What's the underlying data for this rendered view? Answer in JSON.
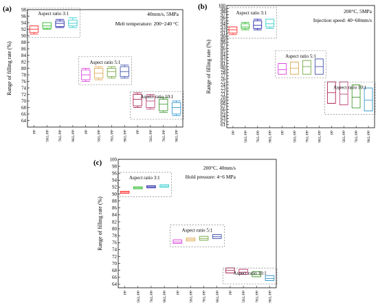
{
  "chart_data": [
    {
      "type": "box",
      "panel_label": "(a)",
      "conditions": [
        "40mm/s, 5MPa",
        "Melt temperature: 200~240 °C"
      ],
      "ylabel": "Range of filling rate (%)",
      "ylim": [
        62,
        98
      ],
      "yticks": [
        64,
        66,
        68,
        70,
        72,
        74,
        76,
        78,
        80,
        82,
        84,
        86,
        88,
        90,
        92,
        94,
        96,
        98
      ],
      "categories": [
        "PP",
        "5KL/PP",
        "7KL/PP",
        "9KL/PP"
      ],
      "groups": [
        {
          "label": "Aspect ratio 3:1",
          "boxes": [
            {
              "category": "PP",
              "min": 90.5,
              "q1": 91.0,
              "median": 92.0,
              "q3": 93.0,
              "max": 93.0
            },
            {
              "category": "5KL/PP",
              "min": 92.0,
              "q1": 92.3,
              "median": 93.0,
              "q3": 94.0,
              "max": 94.0
            },
            {
              "category": "7KL/PP",
              "min": 92.5,
              "q1": 92.8,
              "median": 93.8,
              "q3": 94.5,
              "max": 95.0
            },
            {
              "category": "9KL/PP",
              "min": 92.5,
              "q1": 93.0,
              "median": 93.8,
              "q3": 94.8,
              "max": 95.5
            }
          ]
        },
        {
          "label": "Aspect ratio 5:1",
          "boxes": [
            {
              "category": "PP",
              "min": 76.0,
              "q1": 76.5,
              "median": 78.0,
              "q3": 79.5,
              "max": 80.0
            },
            {
              "category": "5KL/PP",
              "min": 76.5,
              "q1": 77.0,
              "median": 78.5,
              "q3": 80.0,
              "max": 80.5
            },
            {
              "category": "7KL/PP",
              "min": 77.0,
              "q1": 77.5,
              "median": 79.0,
              "q3": 80.0,
              "max": 80.5
            },
            {
              "category": "9KL/PP",
              "min": 77.0,
              "q1": 77.5,
              "median": 79.0,
              "q3": 80.5,
              "max": 81.0
            }
          ]
        },
        {
          "label": "Aspect ratio 10:1",
          "boxes": [
            {
              "category": "PP",
              "min": 68.0,
              "q1": 68.5,
              "median": 70.5,
              "q3": 72.0,
              "max": 72.5
            },
            {
              "category": "5KL/PP",
              "min": 67.5,
              "q1": 68.0,
              "median": 70.0,
              "q3": 71.5,
              "max": 72.0
            },
            {
              "category": "7KL/PP",
              "min": 66.5,
              "q1": 67.0,
              "median": 69.0,
              "q3": 70.5,
              "max": 71.0
            },
            {
              "category": "9KL/PP",
              "min": 65.5,
              "q1": 66.0,
              "median": 68.0,
              "q3": 69.5,
              "max": 70.0
            }
          ]
        }
      ]
    },
    {
      "type": "box",
      "panel_label": "(b)",
      "conditions": [
        "200°C, 5MPa",
        "Injection speed: 40~60mm/s"
      ],
      "ylabel": "Range of filling rate (%)",
      "ylim": [
        60,
        100
      ],
      "yticks": [
        61,
        62,
        63,
        64,
        65,
        66,
        67,
        68,
        69,
        70,
        71,
        72,
        73,
        74,
        75,
        76,
        77,
        78,
        79,
        80,
        81,
        82,
        83,
        84,
        85,
        86,
        87,
        88,
        89,
        90,
        91,
        92,
        93,
        94,
        95,
        96,
        97,
        98,
        99,
        100
      ],
      "categories": [
        "PP",
        "5KL/PP",
        "7KL/PP",
        "9KL/PP"
      ],
      "groups": [
        {
          "label": "Aspect ratio 3:1",
          "boxes": [
            {
              "category": "PP",
              "min": 90.5,
              "q1": 91.0,
              "median": 92.0,
              "q3": 93.0,
              "max": 93.0
            },
            {
              "category": "5KL/PP",
              "min": 92.0,
              "q1": 92.5,
              "median": 93.0,
              "q3": 94.0,
              "max": 94.5
            },
            {
              "category": "7KL/PP",
              "min": 92.0,
              "q1": 92.5,
              "median": 93.5,
              "q3": 95.0,
              "max": 95.5
            },
            {
              "category": "9KL/PP",
              "min": 92.5,
              "q1": 93.0,
              "median": 94.0,
              "q3": 95.5,
              "max": 95.5
            }
          ]
        },
        {
          "label": "Aspect ratio 5:1",
          "boxes": [
            {
              "category": "PP",
              "min": 77.5,
              "q1": 77.5,
              "median": 79.0,
              "q3": 81.0,
              "max": 81.0
            },
            {
              "category": "5KL/PP",
              "min": 77.5,
              "q1": 77.5,
              "median": 79.5,
              "q3": 81.5,
              "max": 81.5
            },
            {
              "category": "7KL/PP",
              "min": 77.5,
              "q1": 77.5,
              "median": 80.0,
              "q3": 82.0,
              "max": 82.0
            },
            {
              "category": "9KL/PP",
              "min": 77.5,
              "q1": 77.5,
              "median": 80.0,
              "q3": 82.5,
              "max": 82.5
            }
          ]
        },
        {
          "label": "Aspect ratio 10:1",
          "boxes": [
            {
              "category": "PP",
              "min": 68.0,
              "q1": 68.0,
              "median": 71.5,
              "q3": 75.0,
              "max": 75.0
            },
            {
              "category": "5KL/PP",
              "min": 67.5,
              "q1": 67.5,
              "median": 71.0,
              "q3": 75.0,
              "max": 75.0
            },
            {
              "category": "7KL/PP",
              "min": 66.5,
              "q1": 66.5,
              "median": 70.0,
              "q3": 74.0,
              "max": 74.0
            },
            {
              "category": "9KL/PP",
              "min": 65.5,
              "q1": 65.5,
              "median": 69.0,
              "q3": 73.0,
              "max": 73.0
            }
          ]
        }
      ]
    },
    {
      "type": "box",
      "panel_label": "(c)",
      "conditions": [
        "200°C, 40mm/s",
        "Hold pressure: 4~6 MPa"
      ],
      "ylabel": "Range of filling rate (%)",
      "ylim": [
        63,
        100
      ],
      "yticks": [
        64,
        66,
        68,
        70,
        72,
        74,
        76,
        78,
        80,
        82,
        84,
        86,
        88,
        90,
        92,
        94,
        96,
        98,
        100
      ],
      "categories": [
        "PP",
        "5KL/PP",
        "7KL/PP",
        "9KL/PP"
      ],
      "groups": [
        {
          "label": "Aspect ratio 3:1",
          "boxes": [
            {
              "category": "PP",
              "min": 90.2,
              "q1": 90.2,
              "median": 90.5,
              "q3": 90.8,
              "max": 90.8
            },
            {
              "category": "5KL/PP",
              "min": 91.5,
              "q1": 91.5,
              "median": 91.8,
              "q3": 92.1,
              "max": 92.1
            },
            {
              "category": "7KL/PP",
              "min": 91.8,
              "q1": 91.8,
              "median": 92.1,
              "q3": 92.4,
              "max": 92.4
            },
            {
              "category": "9KL/PP",
              "min": 92.0,
              "q1": 92.0,
              "median": 92.3,
              "q3": 92.7,
              "max": 92.7
            }
          ]
        },
        {
          "label": "Aspect ratio 5:1",
          "boxes": [
            {
              "category": "PP",
              "min": 75.8,
              "q1": 75.8,
              "median": 76.2,
              "q3": 76.8,
              "max": 76.8
            },
            {
              "category": "5KL/PP",
              "min": 76.5,
              "q1": 76.5,
              "median": 76.9,
              "q3": 77.3,
              "max": 77.3
            },
            {
              "category": "7KL/PP",
              "min": 76.7,
              "q1": 76.7,
              "median": 77.2,
              "q3": 77.8,
              "max": 77.8
            },
            {
              "category": "9KL/PP",
              "min": 77.2,
              "q1": 77.2,
              "median": 77.7,
              "q3": 78.3,
              "max": 78.3
            }
          ]
        },
        {
          "label": "Aspect ratio 10:1",
          "boxes": [
            {
              "category": "PP",
              "min": 67.3,
              "q1": 67.3,
              "median": 68.0,
              "q3": 68.7,
              "max": 68.7
            },
            {
              "category": "5KL/PP",
              "min": 66.9,
              "q1": 66.9,
              "median": 67.5,
              "q3": 68.3,
              "max": 68.3
            },
            {
              "category": "7KL/PP",
              "min": 66.2,
              "q1": 66.2,
              "median": 66.8,
              "q3": 67.6,
              "max": 67.6
            },
            {
              "category": "9KL/PP",
              "min": 65.1,
              "q1": 65.1,
              "median": 65.7,
              "q3": 66.5,
              "max": 66.5
            }
          ]
        }
      ]
    }
  ],
  "series_colors": [
    "#ff3030",
    "#33bb33",
    "#2222aa",
    "#33cccc",
    "#dd44dd",
    "#ddaa55",
    "#77aa44",
    "#4455aa",
    "#aa2255",
    "#bb4477",
    "#449933",
    "#3399cc"
  ]
}
